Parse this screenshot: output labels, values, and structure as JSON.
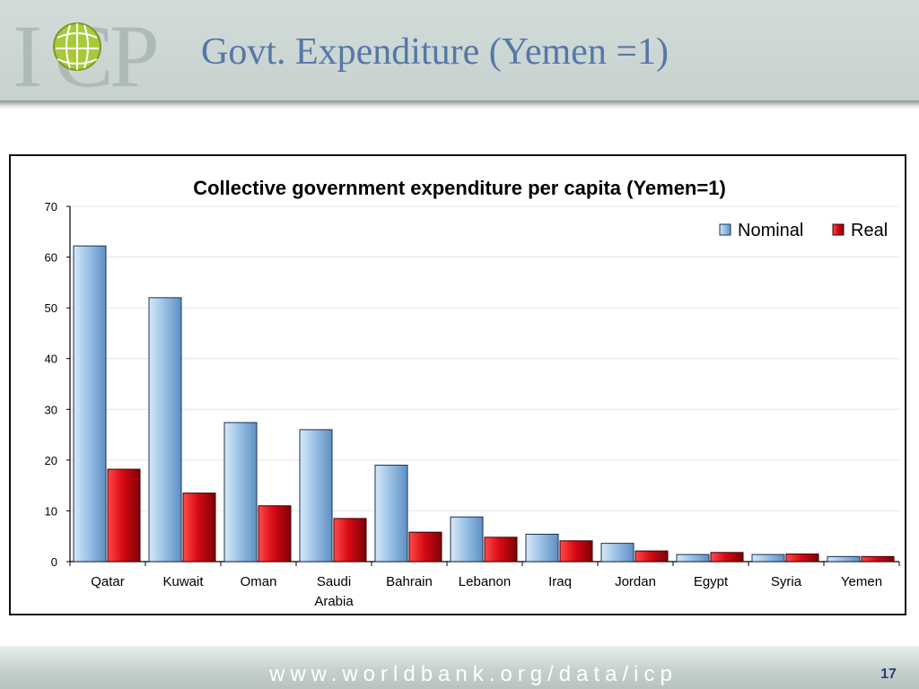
{
  "slide": {
    "title": "Govt. Expenditure (Yemen =1)",
    "footer_url": "www.worldbank.org/data/icp",
    "page_number": "17"
  },
  "logo": {
    "text": "ICP"
  },
  "colors": {
    "nominal": "#9cc3e6",
    "real": "#d80b14",
    "title_blue": "#5677a7"
  },
  "chart_data": {
    "type": "bar",
    "title": "Collective government expenditure per capita (Yemen=1)",
    "xlabel": "",
    "ylabel": "",
    "ylim": [
      0,
      70
    ],
    "yticks": [
      "0",
      "10",
      "20",
      "30",
      "40",
      "50",
      "60",
      "70"
    ],
    "categories": [
      [
        "Qatar"
      ],
      [
        "Kuwait"
      ],
      [
        "Oman"
      ],
      [
        "Saudi",
        "Arabia"
      ],
      [
        "Bahrain"
      ],
      [
        "Lebanon"
      ],
      [
        "Iraq"
      ],
      [
        "Jordan"
      ],
      [
        "Egypt"
      ],
      [
        "Syria"
      ],
      [
        "Yemen"
      ]
    ],
    "series": [
      {
        "name": "Nominal",
        "values": [
          62.2,
          52.0,
          27.4,
          26.0,
          19.0,
          8.8,
          5.4,
          3.6,
          1.4,
          1.4,
          1.0
        ]
      },
      {
        "name": "Real",
        "values": [
          18.2,
          13.5,
          11.0,
          8.5,
          5.8,
          4.8,
          4.1,
          2.1,
          1.8,
          1.5,
          1.0
        ]
      }
    ],
    "grid": true,
    "legend_position": "top-right"
  }
}
